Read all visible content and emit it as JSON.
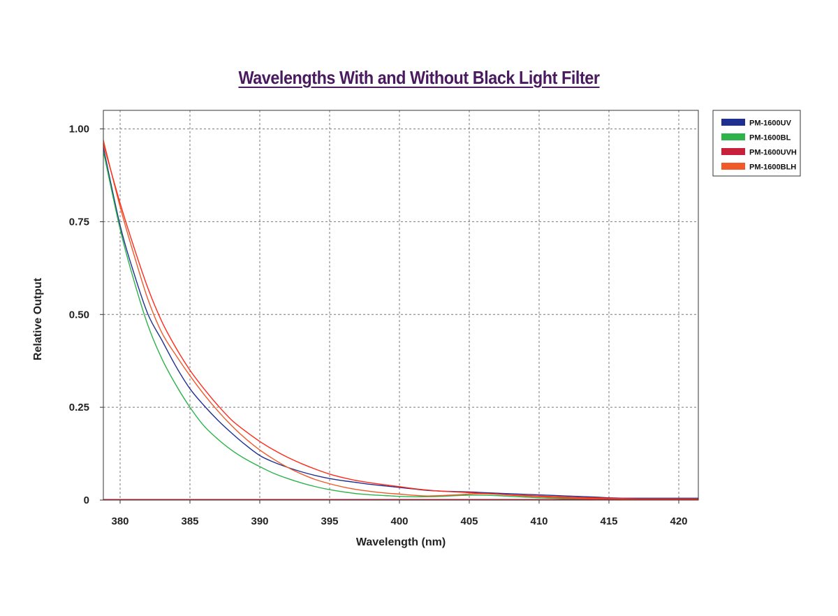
{
  "chart_data": {
    "type": "line",
    "title": "Wavelengths With and Without Black Light Filter",
    "xlabel": "Wavelength (nm)",
    "ylabel": "Relative Output",
    "xlim": [
      378.8,
      421.4
    ],
    "ylim": [
      0,
      1.05
    ],
    "xticks": [
      380,
      385,
      390,
      395,
      400,
      405,
      410,
      415,
      420
    ],
    "yticks": [
      0,
      0.25,
      0.5,
      0.75,
      1.0
    ],
    "ytick_labels": [
      "0",
      "0.25",
      "0.50",
      "0.75",
      "1.00"
    ],
    "grid": true,
    "legend_position": "top-right",
    "series": [
      {
        "name": "PM-1600UV",
        "color": "#1f2f8f",
        "x": [
          378.8,
          380,
          381,
          382,
          383,
          384,
          385,
          386,
          387,
          388,
          389,
          390,
          391,
          392,
          393,
          394,
          395,
          396,
          397,
          398,
          399,
          400,
          401,
          402,
          403,
          404,
          405,
          406,
          408,
          410,
          412,
          414,
          415,
          416,
          418,
          420,
          421.4
        ],
        "y": [
          0.95,
          0.74,
          0.61,
          0.5,
          0.43,
          0.36,
          0.3,
          0.255,
          0.215,
          0.18,
          0.148,
          0.12,
          0.102,
          0.088,
          0.076,
          0.066,
          0.058,
          0.052,
          0.047,
          0.042,
          0.038,
          0.034,
          0.03,
          0.026,
          0.024,
          0.023,
          0.022,
          0.02,
          0.017,
          0.014,
          0.011,
          0.008,
          0.006,
          0.005,
          0.005,
          0.005,
          0.005
        ]
      },
      {
        "name": "PM-1600BL",
        "color": "#2db34a",
        "x": [
          378.8,
          380,
          381,
          382,
          383,
          384,
          385,
          386,
          387,
          388,
          389,
          390,
          391,
          392,
          393,
          394,
          395,
          396,
          397,
          398,
          399,
          400,
          401,
          402,
          403,
          404,
          405,
          406,
          407,
          408,
          409,
          410,
          412,
          414,
          415,
          416,
          418,
          420,
          421.4
        ],
        "y": [
          0.94,
          0.73,
          0.59,
          0.47,
          0.38,
          0.31,
          0.25,
          0.2,
          0.164,
          0.134,
          0.11,
          0.09,
          0.072,
          0.058,
          0.046,
          0.036,
          0.028,
          0.022,
          0.017,
          0.014,
          0.012,
          0.01,
          0.009,
          0.009,
          0.01,
          0.012,
          0.013,
          0.013,
          0.012,
          0.01,
          0.008,
          0.006,
          0.004,
          0.003,
          0.003,
          0.003,
          0.003,
          0.003,
          0.003
        ]
      },
      {
        "name": "PM-1600UVH",
        "color": "#c8203a",
        "x": [
          378.8,
          385,
          390,
          395,
          400,
          405,
          410,
          415,
          420,
          421.4
        ],
        "y": [
          0.001,
          0.001,
          0.001,
          0.001,
          0.001,
          0.001,
          0.001,
          0.001,
          0.001,
          0.001
        ]
      },
      {
        "name": "PM-1600BLH",
        "color": "#f05a28",
        "x": [
          378.8,
          380,
          381,
          382,
          383,
          384,
          385,
          386,
          387,
          388,
          389,
          390,
          391,
          392,
          393,
          394,
          395,
          396,
          397,
          398,
          399,
          400,
          401,
          402,
          403,
          404,
          405,
          406,
          407,
          408,
          410,
          412,
          414,
          415,
          416,
          418,
          420,
          421.4
        ],
        "y": [
          0.97,
          0.79,
          0.66,
          0.54,
          0.45,
          0.39,
          0.335,
          0.285,
          0.24,
          0.2,
          0.165,
          0.135,
          0.11,
          0.088,
          0.07,
          0.055,
          0.044,
          0.035,
          0.028,
          0.023,
          0.019,
          0.016,
          0.013,
          0.011,
          0.012,
          0.014,
          0.016,
          0.017,
          0.016,
          0.013,
          0.009,
          0.006,
          0.004,
          0.004,
          0.003,
          0.003,
          0.003,
          0.003
        ]
      },
      {
        "name": "",
        "color": "#ff2a1a",
        "x": [
          378.8,
          380,
          381,
          382,
          383,
          384,
          385,
          386,
          387,
          388,
          389,
          390,
          391,
          392,
          393,
          394,
          395,
          396,
          397,
          398,
          399,
          400,
          401,
          402,
          403,
          404,
          405,
          406,
          408,
          410,
          412,
          414,
          415,
          416,
          418,
          420,
          421.4
        ],
        "y": [
          0.96,
          0.8,
          0.68,
          0.57,
          0.48,
          0.41,
          0.35,
          0.3,
          0.255,
          0.215,
          0.185,
          0.158,
          0.135,
          0.115,
          0.098,
          0.083,
          0.07,
          0.06,
          0.052,
          0.046,
          0.041,
          0.036,
          0.031,
          0.027,
          0.024,
          0.022,
          0.02,
          0.018,
          0.014,
          0.011,
          0.008,
          0.006,
          0.005,
          0.004,
          0.003,
          0.003,
          0.003
        ]
      }
    ]
  }
}
